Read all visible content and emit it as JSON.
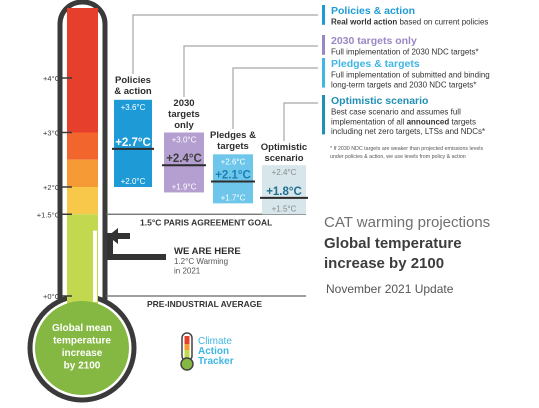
{
  "chart_data": {
    "type": "bar",
    "y_unit": "°C",
    "y_ticks": [
      {
        "value": 4,
        "label": "+4°C"
      },
      {
        "value": 3,
        "label": "+3°C"
      },
      {
        "value": 2,
        "label": "+2°C"
      },
      {
        "value": 1.5,
        "label": "+1.5°C"
      },
      {
        "value": 0,
        "label": "+0°C"
      }
    ],
    "scenarios": [
      {
        "id": "policies",
        "label_lines": [
          "Policies",
          "& action"
        ],
        "high": 3.6,
        "median": 2.7,
        "low": 2.0,
        "high_label": "+3.6°C",
        "median_label": "+2.7°C",
        "low_label": "+2.0°C",
        "color": "#1e9bd7"
      },
      {
        "id": "targets2030",
        "label_lines": [
          "2030",
          "targets",
          "only"
        ],
        "high": 3.0,
        "median": 2.4,
        "low": 1.9,
        "high_label": "+3.0°C",
        "median_label": "+2.4°C",
        "low_label": "+1.9°C",
        "color": "#b49fd0"
      },
      {
        "id": "pledges",
        "label_lines": [
          "Pledges &",
          "targets"
        ],
        "high": 2.6,
        "median": 2.1,
        "low": 1.7,
        "high_label": "+2.6°C",
        "median_label": "+2.1°C",
        "low_label": "+1.7°C",
        "color": "#6ec6ea"
      },
      {
        "id": "optimistic",
        "label_lines": [
          "Optimistic",
          "scenario"
        ],
        "high": 2.4,
        "median": 1.8,
        "low": 1.5,
        "high_label": "+2.4°C",
        "median_label": "+1.8°C",
        "low_label": "+1.5°C",
        "color": "#d6e6ea"
      }
    ],
    "reference_lines": [
      {
        "value": 1.5,
        "label": "1.5°C PARIS AGREEMENT GOAL"
      },
      {
        "value": 0,
        "label": "PRE-INDUSTRIAL AVERAGE"
      }
    ],
    "current": {
      "value": 1.2,
      "title": "WE ARE HERE",
      "lines": [
        "1.2°C Warming",
        "in 2021"
      ]
    },
    "thermometer_label": [
      "Global mean",
      "temperature",
      "increase",
      "by 2100"
    ]
  },
  "legend": [
    {
      "title": "Policies & action",
      "color": "#1e9bd7",
      "lines": [
        [
          {
            "t": "Real world action",
            "b": true
          },
          {
            "t": " based on current policies",
            "b": false
          }
        ]
      ]
    },
    {
      "title": "2030 targets only",
      "color": "#9b86c4",
      "lines": [
        [
          {
            "t": "Full implementation of 2030 NDC targets*",
            "b": false
          }
        ]
      ]
    },
    {
      "title": "Pledges & targets",
      "color": "#3fb6e3",
      "lines": [
        [
          {
            "t": "Full implementation of submitted and binding",
            "b": false
          }
        ],
        [
          {
            "t": "long-term targets and 2030 NDC targets*",
            "b": false
          }
        ]
      ]
    },
    {
      "title": "Optimistic scenario",
      "color": "#1f8fb3",
      "lines": [
        [
          {
            "t": "Best case scenario and assumes full",
            "b": false
          }
        ],
        [
          {
            "t": "implementation of all ",
            "b": false
          },
          {
            "t": "announced",
            "b": true
          },
          {
            "t": " targets",
            "b": false
          }
        ],
        [
          {
            "t": "including net zero targets, LTSs and NDCs*",
            "b": false
          }
        ]
      ]
    }
  ],
  "footnote": [
    "* If 2030 NDC targets are weaker than projected emissions levels",
    "under policies & action, we use levels from policy & action"
  ],
  "heading": {
    "line1": "CAT warming projections",
    "line2": "Global temperature",
    "line3": "increase by 2100",
    "date": "November 2021 Update"
  },
  "logo": {
    "line1": "Climate",
    "line2": "Action",
    "line3": "Tracker"
  }
}
